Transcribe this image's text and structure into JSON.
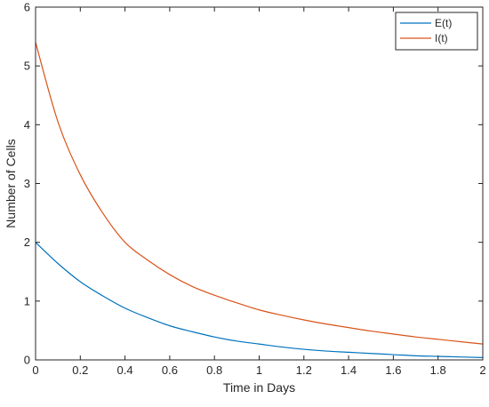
{
  "chart_data": {
    "type": "line",
    "title": "",
    "xlabel": "Time in Days",
    "ylabel": "Number of Cells",
    "xlim": [
      0,
      2
    ],
    "ylim": [
      0,
      6
    ],
    "xticks": [
      0,
      0.2,
      0.4,
      0.6,
      0.8,
      1,
      1.2,
      1.4,
      1.6,
      1.8,
      2
    ],
    "xtick_labels": [
      "0",
      "0.2",
      "0.4",
      "0.6",
      "0.8",
      "1",
      "1.2",
      "1.4",
      "1.6",
      "1.8",
      "2"
    ],
    "yticks": [
      0,
      1,
      2,
      3,
      4,
      5,
      6
    ],
    "ytick_labels": [
      "0",
      "1",
      "2",
      "3",
      "4",
      "5",
      "6"
    ],
    "grid": false,
    "legend_position": "top-right",
    "x": [
      0,
      0.1,
      0.2,
      0.3,
      0.4,
      0.5,
      0.6,
      0.7,
      0.8,
      0.9,
      1.0,
      1.1,
      1.2,
      1.3,
      1.4,
      1.5,
      1.6,
      1.7,
      1.8,
      1.9,
      2.0
    ],
    "series": [
      {
        "name": "E(t)",
        "color": "#0072BD",
        "values": [
          2.0,
          1.64,
          1.33,
          1.09,
          0.88,
          0.72,
          0.58,
          0.48,
          0.39,
          0.32,
          0.27,
          0.22,
          0.18,
          0.15,
          0.13,
          0.11,
          0.09,
          0.07,
          0.06,
          0.05,
          0.04
        ]
      },
      {
        "name": "I(t)",
        "color": "#D95319",
        "values": [
          5.4,
          4.05,
          3.15,
          2.5,
          2.0,
          1.7,
          1.45,
          1.25,
          1.1,
          0.97,
          0.85,
          0.76,
          0.68,
          0.61,
          0.55,
          0.49,
          0.44,
          0.39,
          0.35,
          0.31,
          0.27
        ]
      }
    ]
  }
}
